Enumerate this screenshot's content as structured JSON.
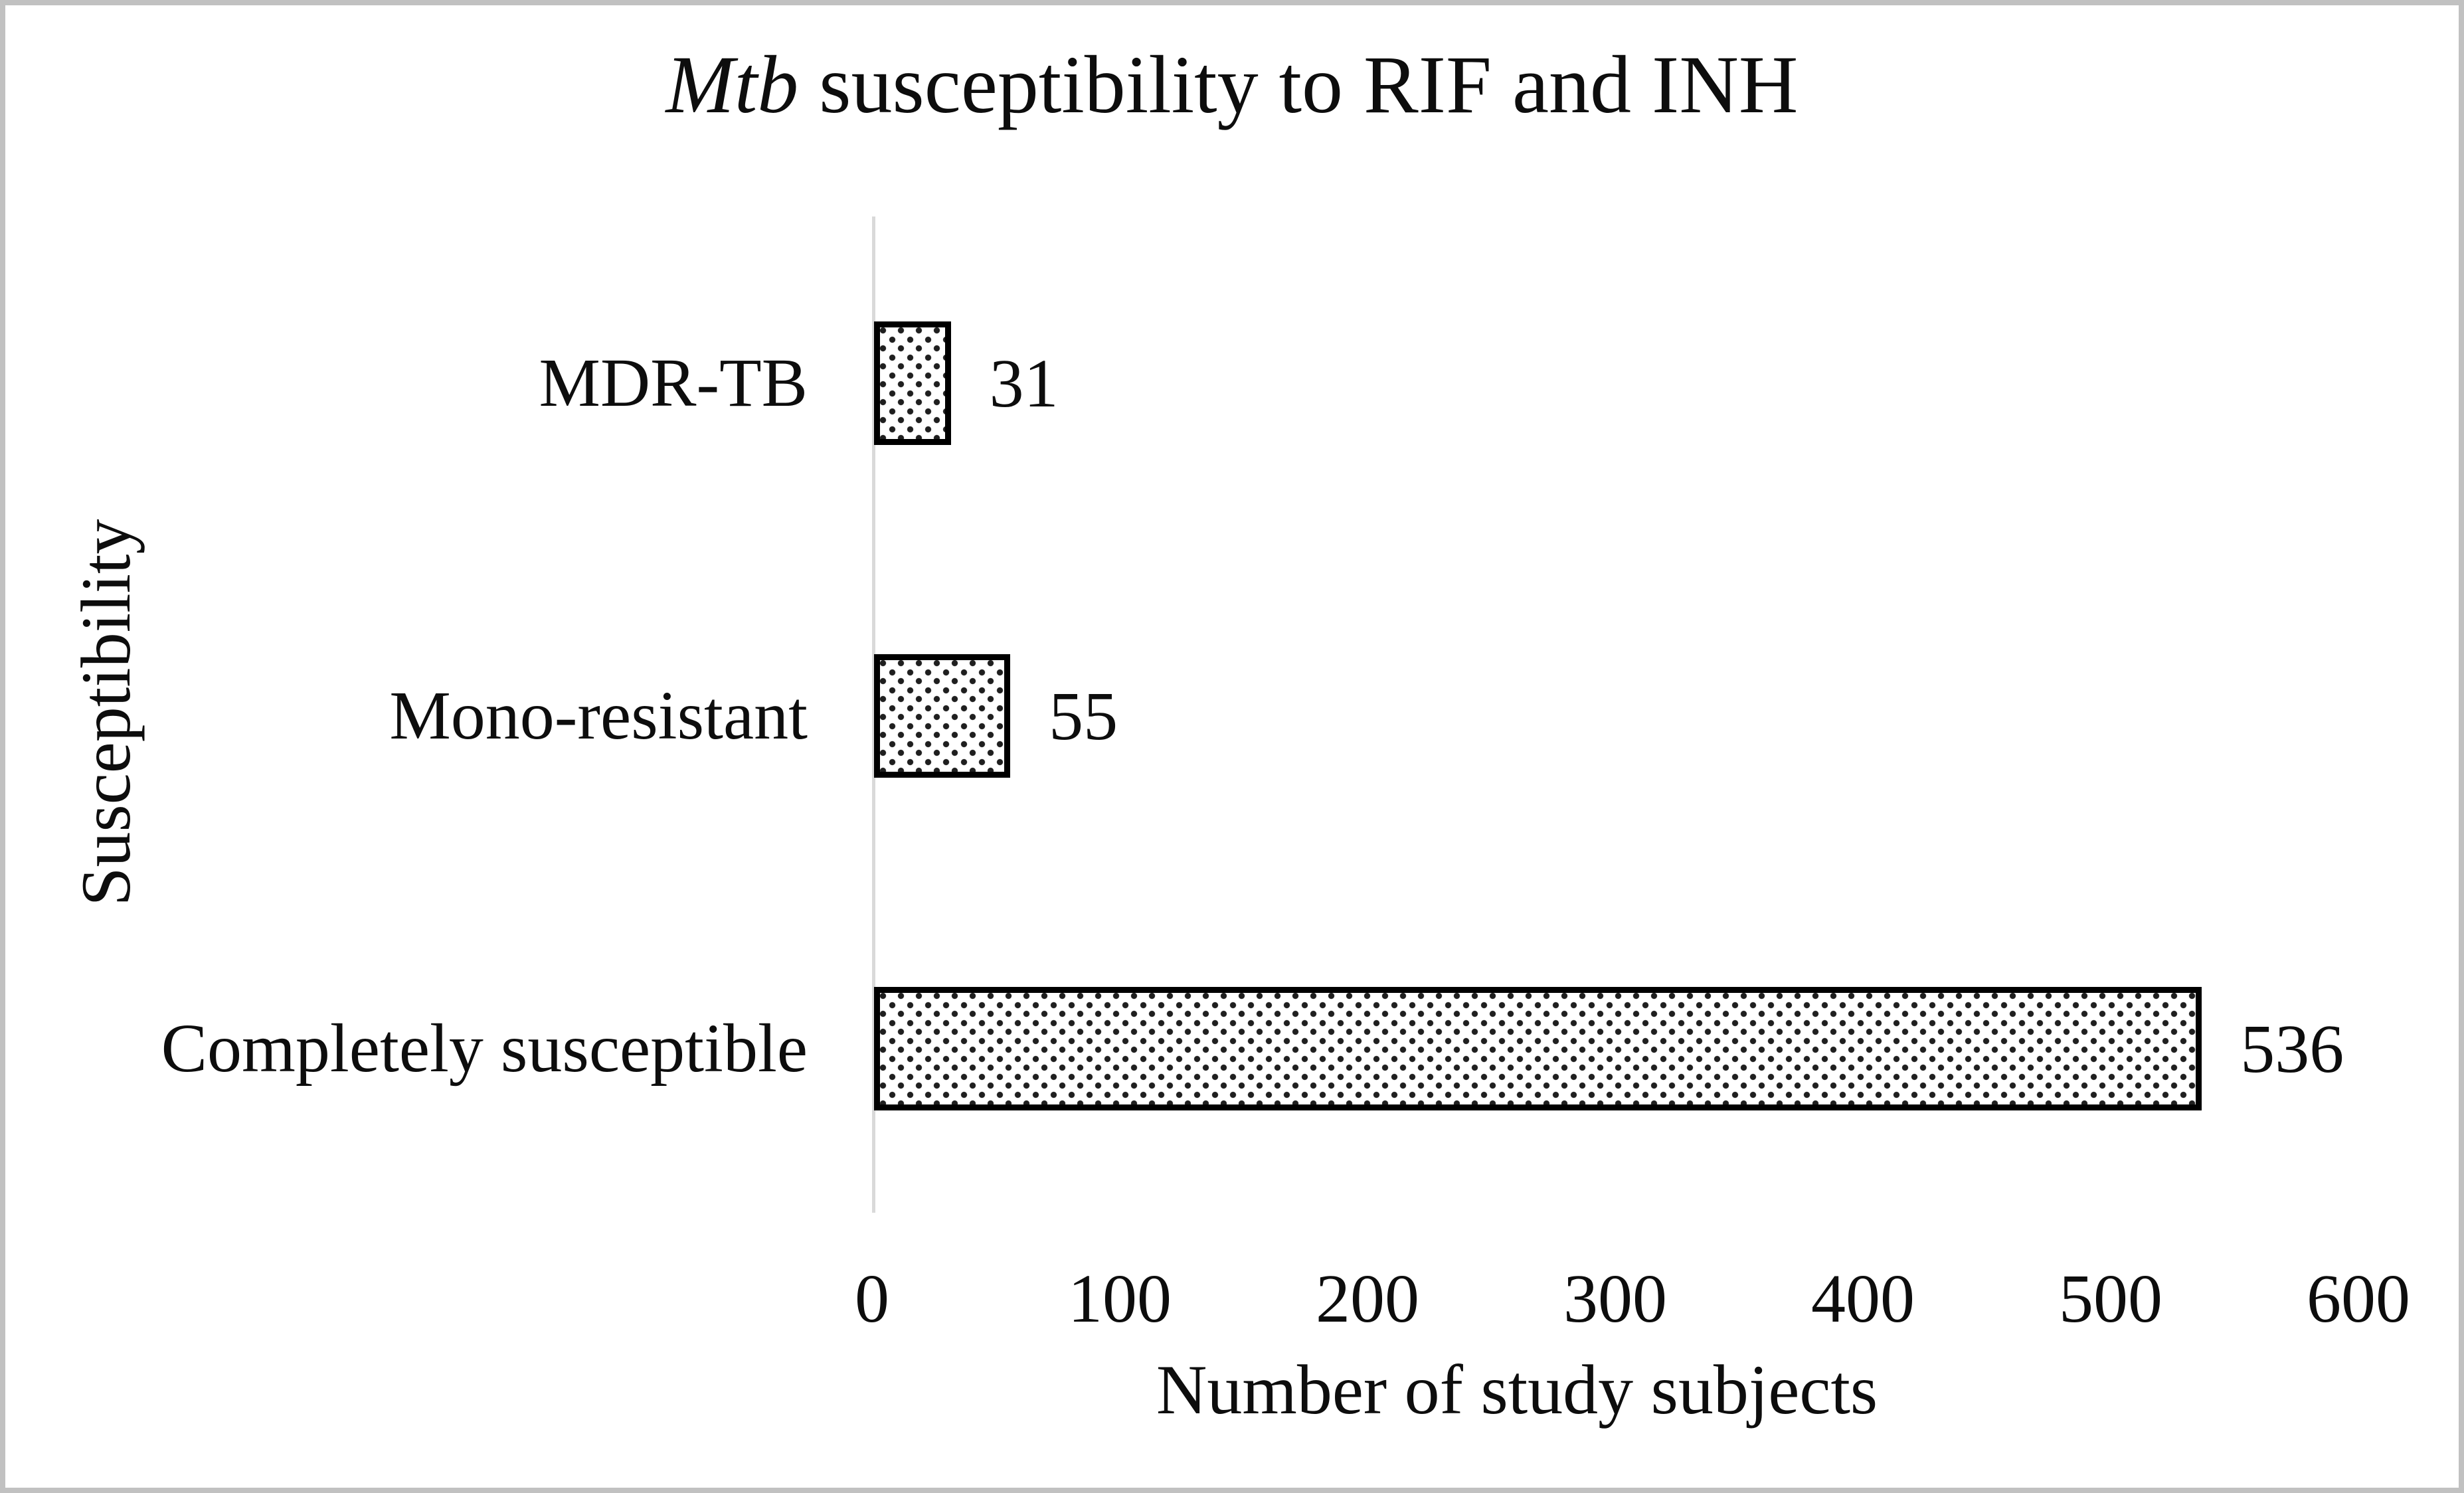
{
  "figure": {
    "title_italic": "Mtb",
    "title_rest": " susceptibility to RIF and INH"
  },
  "chart_data": {
    "type": "bar",
    "orientation": "horizontal",
    "title": "Mtb susceptibility to RIF and INH",
    "categories": [
      "MDR-TB",
      "Mono-resistant",
      "Completely susceptible"
    ],
    "values": [
      31,
      55,
      536
    ],
    "data_labels": [
      "31",
      "55",
      "536"
    ],
    "xlabel": "Number of study subjects",
    "ylabel": "Susceptibility",
    "xlim": [
      0,
      600
    ],
    "xticks": [
      0,
      100,
      200,
      300,
      400,
      500,
      600
    ],
    "grid": false,
    "legend": false,
    "bar_fill_style": "dotted-pattern",
    "bar_border_color": "#000000",
    "axis_line_color": "#d9d9d9",
    "outer_border_color": "#c1c1c1",
    "text_color": "#0d0d0d",
    "background_color": "#ffffff"
  }
}
